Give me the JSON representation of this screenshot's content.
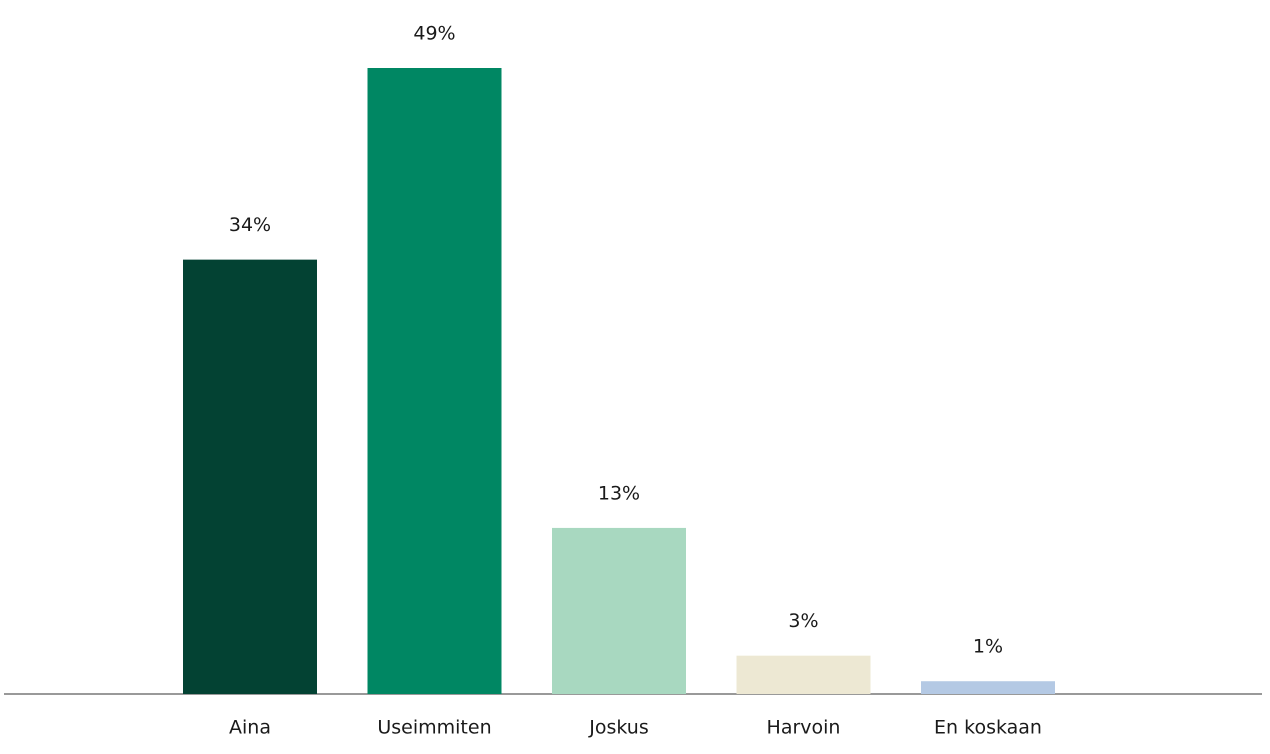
{
  "chart_data": {
    "type": "bar",
    "categories": [
      "Aina",
      "Useimmiten",
      "Joskus",
      "Harvoin",
      "En koskaan"
    ],
    "values": [
      34,
      49,
      13,
      3,
      1
    ],
    "value_labels": [
      "34%",
      "49%",
      "13%",
      "3%",
      "1%"
    ],
    "colors": [
      "#034233",
      "#008763",
      "#a8d8c0",
      "#ede8d3",
      "#b4c9e4"
    ]
  }
}
